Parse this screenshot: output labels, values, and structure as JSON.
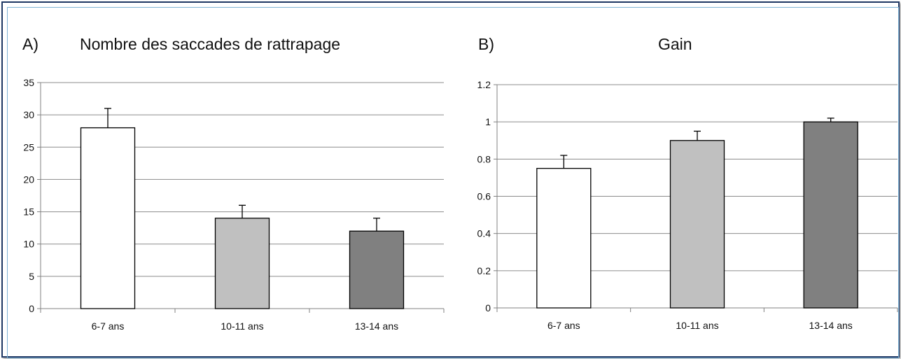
{
  "panels": [
    {
      "letter": "A)",
      "title": "Nombre des saccades de rattrapage",
      "chart_data": {
        "type": "bar",
        "title": "Nombre des saccades de rattrapage",
        "categories": [
          "6-7 ans",
          "10-11 ans",
          "13-14 ans"
        ],
        "values": [
          28,
          14,
          12
        ],
        "errors": [
          3,
          2,
          2
        ],
        "colors": [
          "#ffffff",
          "#c0c0c0",
          "#808080"
        ],
        "ylim": [
          0,
          35
        ],
        "yticks": [
          0,
          5,
          10,
          15,
          20,
          25,
          30,
          35
        ],
        "ytick_labels": [
          "0",
          "5",
          "10",
          "15",
          "20",
          "25",
          "30",
          "35"
        ],
        "grid": true
      }
    },
    {
      "letter": "B)",
      "title": "Gain",
      "chart_data": {
        "type": "bar",
        "title": "Gain",
        "categories": [
          "6-7 ans",
          "10-11 ans",
          "13-14 ans"
        ],
        "values": [
          0.75,
          0.9,
          1.0
        ],
        "errors": [
          0.07,
          0.05,
          0.02
        ],
        "colors": [
          "#ffffff",
          "#c0c0c0",
          "#808080"
        ],
        "ylim": [
          0,
          1.2
        ],
        "yticks": [
          0,
          0.2,
          0.4,
          0.6,
          0.8,
          1.0,
          1.2
        ],
        "ytick_labels": [
          "0",
          "0.2",
          "0.4",
          "0.6",
          "0.8",
          "1",
          "1.2"
        ],
        "grid": true
      }
    }
  ],
  "chart_data": [
    {
      "type": "bar",
      "title": "Nombre des saccades de rattrapage",
      "categories": [
        "6-7 ans",
        "10-11 ans",
        "13-14 ans"
      ],
      "values": [
        28,
        14,
        12
      ],
      "errors": [
        3,
        2,
        2
      ],
      "ylim": [
        0,
        35
      ]
    },
    {
      "type": "bar",
      "title": "Gain",
      "categories": [
        "6-7 ans",
        "10-11 ans",
        "13-14 ans"
      ],
      "values": [
        0.75,
        0.9,
        1.0
      ],
      "errors": [
        0.07,
        0.05,
        0.02
      ],
      "ylim": [
        0,
        1.2
      ]
    }
  ]
}
